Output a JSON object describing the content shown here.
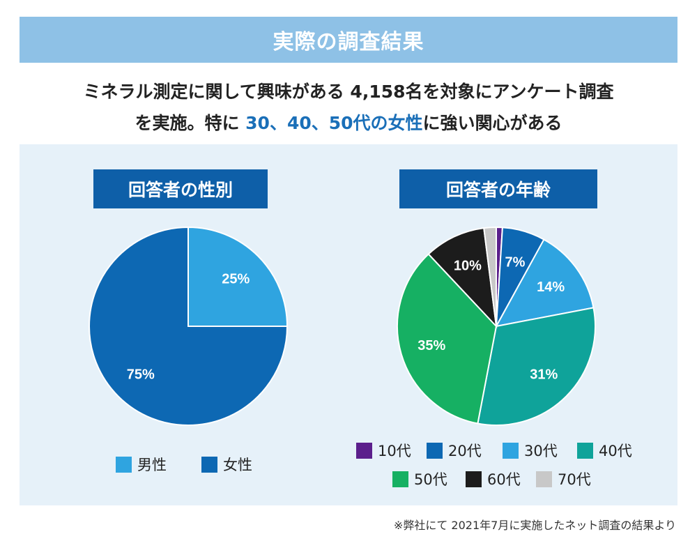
{
  "title": "実際の調査結果",
  "summary": {
    "line1": "ミネラル測定に関して興味がある 4,158名を対象にアンケート調査",
    "line2_pre": "を実施。特に ",
    "line2_highlight": "30、40、50代の女性",
    "line2_post": "に強い関心がある"
  },
  "footnote": "※弊社にて 2021年7月に実施したネット調査の結果より",
  "chart_data": [
    {
      "type": "pie",
      "title": "回答者の性別",
      "categories": [
        "男性",
        "女性"
      ],
      "values": [
        25,
        75
      ],
      "labels": [
        "25%",
        "75%"
      ],
      "colors": [
        "#2fa4e0",
        "#0d68b3"
      ],
      "legend": "bottom"
    },
    {
      "type": "pie",
      "title": "回答者の年齢",
      "categories": [
        "10代",
        "20代",
        "30代",
        "40代",
        "50代",
        "60代",
        "70代"
      ],
      "values": [
        1,
        7,
        14,
        31,
        35,
        10,
        2
      ],
      "labels": [
        "",
        "7%",
        "14%",
        "31%",
        "35%",
        "10%",
        ""
      ],
      "colors": [
        "#5b1f8c",
        "#0d68b3",
        "#2fa4e0",
        "#0fa39a",
        "#16b063",
        "#1c1c1c",
        "#c8c8c8"
      ],
      "legend": "bottom"
    }
  ]
}
